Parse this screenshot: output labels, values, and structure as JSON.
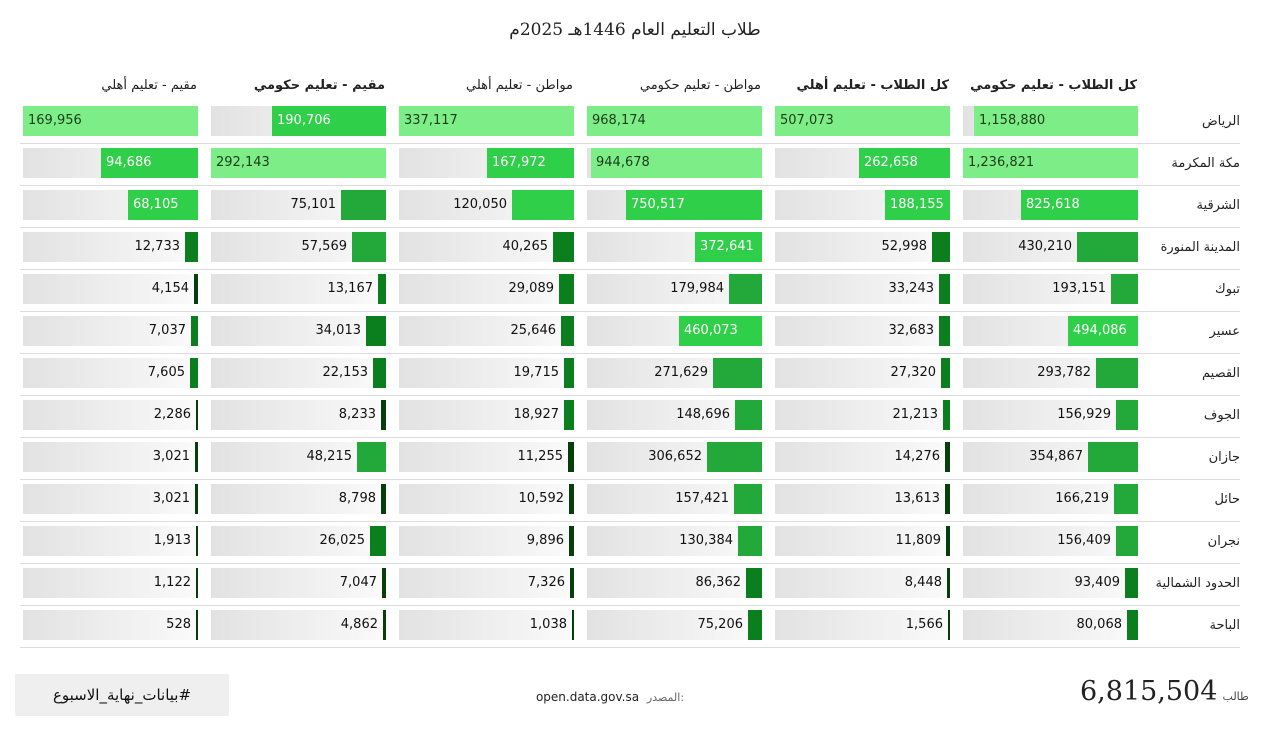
{
  "title": "طلاب التعليم العام  1446هـ 2025م",
  "footer": {
    "total": "6,815,504",
    "total_unit": "طالب",
    "source_label": "المصدر:",
    "source": "open.data.gov.sa",
    "hashtag": "#بيانات_نهاية_الاسبوع"
  },
  "colors": {
    "lightest": "#7ded87",
    "light": "#2fcf49",
    "mid": "#22a93a",
    "dark": "#0b7f1e",
    "darkest": "#063f0b"
  },
  "chart_data": {
    "type": "table",
    "title": "طلاب التعليم العام  1446هـ 2025م",
    "columns": [
      {
        "label": "كل الطلاب - تعليم حكومي",
        "bold": true,
        "max": 1236821
      },
      {
        "label": "كل الطلاب - تعليم أهلي",
        "bold": true,
        "max": 507073
      },
      {
        "label": "مواطن - تعليم حكومي",
        "bold": false,
        "max": 968174
      },
      {
        "label": "مواطن - تعليم أهلي",
        "bold": false,
        "max": 337117
      },
      {
        "label": "مقيم - تعليم حكومي",
        "bold": true,
        "max": 292143
      },
      {
        "label": "مقيم - تعليم أهلي",
        "bold": false,
        "max": 169956
      }
    ],
    "rows": [
      {
        "region": "الرياض",
        "values": [
          1158880,
          507073,
          968174,
          337117,
          190706,
          169956
        ],
        "labels": [
          "1,158,880",
          "507,073",
          "968,174",
          "337,117",
          "190,706",
          "169,956"
        ]
      },
      {
        "region": "مكة المكرمة",
        "values": [
          1236821,
          262658,
          944678,
          167972,
          292143,
          94686
        ],
        "labels": [
          "1,236,821",
          "262,658",
          "944,678",
          "167,972",
          "292,143",
          "94,686"
        ]
      },
      {
        "region": "الشرقية",
        "values": [
          825618,
          188155,
          750517,
          120050,
          75101,
          68105
        ],
        "labels": [
          "825,618",
          "188,155",
          "750,517",
          "120,050",
          "75,101",
          "68,105"
        ]
      },
      {
        "region": "المدينة المنورة",
        "values": [
          430210,
          52998,
          372641,
          40265,
          57569,
          12733
        ],
        "labels": [
          "430,210",
          "52,998",
          "372,641",
          "40,265",
          "57,569",
          "12,733"
        ]
      },
      {
        "region": "تبوك",
        "values": [
          193151,
          33243,
          179984,
          29089,
          13167,
          4154
        ],
        "labels": [
          "193,151",
          "33,243",
          "179,984",
          "29,089",
          "13,167",
          "4,154"
        ]
      },
      {
        "region": "عسير",
        "values": [
          494086,
          32683,
          460073,
          25646,
          34013,
          7037
        ],
        "labels": [
          "494,086",
          "32,683",
          "460,073",
          "25,646",
          "34,013",
          "7,037"
        ]
      },
      {
        "region": "القصيم",
        "values": [
          293782,
          27320,
          271629,
          19715,
          22153,
          7605
        ],
        "labels": [
          "293,782",
          "27,320",
          "271,629",
          "19,715",
          "22,153",
          "7,605"
        ]
      },
      {
        "region": "الجوف",
        "values": [
          156929,
          21213,
          148696,
          18927,
          8233,
          2286
        ],
        "labels": [
          "156,929",
          "21,213",
          "148,696",
          "18,927",
          "8,233",
          "2,286"
        ]
      },
      {
        "region": "جازان",
        "values": [
          354867,
          14276,
          306652,
          11255,
          48215,
          3021
        ],
        "labels": [
          "354,867",
          "14,276",
          "306,652",
          "11,255",
          "48,215",
          "3,021"
        ]
      },
      {
        "region": "حائل",
        "values": [
          166219,
          13613,
          157421,
          10592,
          8798,
          3021
        ],
        "labels": [
          "166,219",
          "13,613",
          "157,421",
          "10,592",
          "8,798",
          "3,021"
        ]
      },
      {
        "region": "نجران",
        "values": [
          156409,
          11809,
          130384,
          9896,
          26025,
          1913
        ],
        "labels": [
          "156,409",
          "11,809",
          "130,384",
          "9,896",
          "26,025",
          "1,913"
        ]
      },
      {
        "region": "الحدود الشمالية",
        "values": [
          93409,
          8448,
          86362,
          7326,
          7047,
          1122
        ],
        "labels": [
          "93,409",
          "8,448",
          "86,362",
          "7,326",
          "7,047",
          "1,122"
        ]
      },
      {
        "region": "الباحة",
        "values": [
          80068,
          1566,
          75206,
          1038,
          4862,
          528
        ],
        "labels": [
          "80,068",
          "1,566",
          "75,206",
          "1,038",
          "4,862",
          "528"
        ]
      }
    ]
  }
}
